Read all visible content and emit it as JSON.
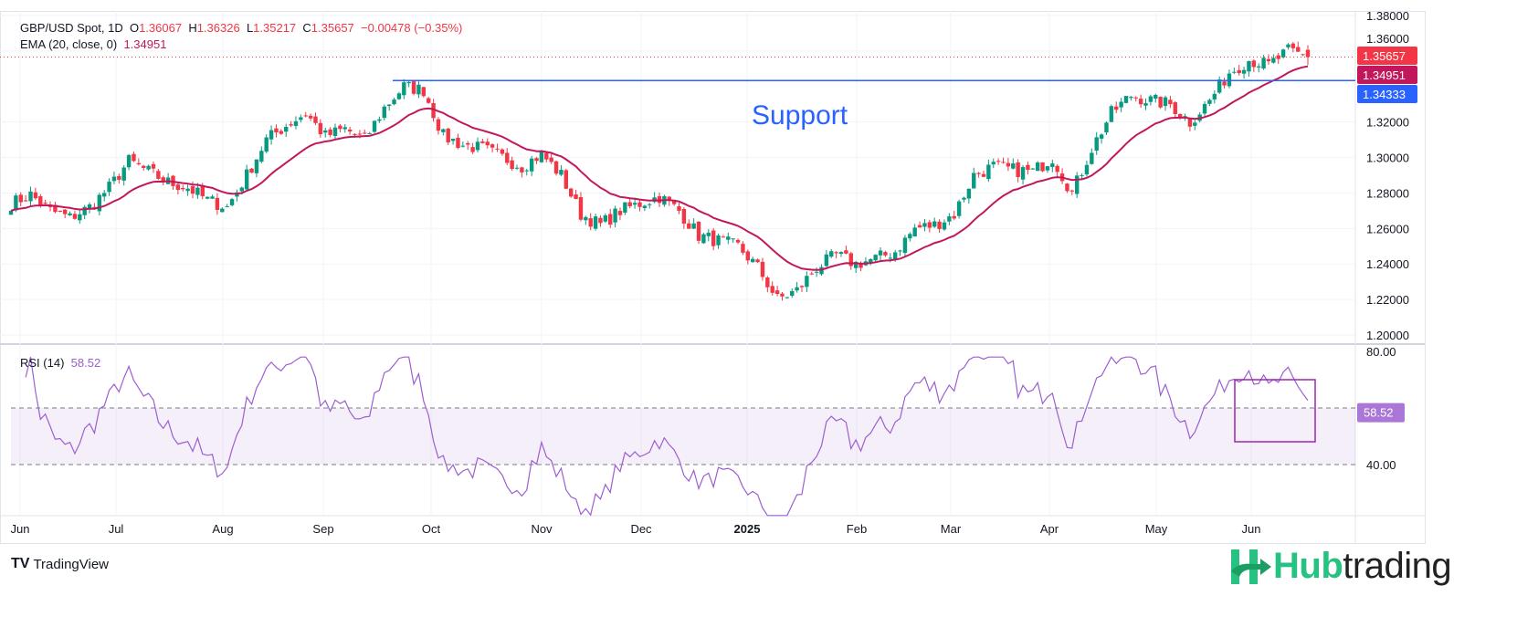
{
  "header": {
    "symbol": "GBP/USD Spot, 1D",
    "o_label": "O",
    "open": "1.36067",
    "h_label": "H",
    "high": "1.36326",
    "l_label": "L",
    "low": "1.35217",
    "c_label": "C",
    "close": "1.35657",
    "change": "−0.00478 (−0.35%)"
  },
  "ema_legend": {
    "label": "EMA (20, close, 0)",
    "value": "1.34951"
  },
  "rsi_legend": {
    "label": "RSI (14)",
    "value": "58.52"
  },
  "annotation": "Support",
  "price_badges": {
    "last": "1.35657",
    "ema": "1.34951",
    "support": "1.34333"
  },
  "colors": {
    "up": "#089981",
    "down": "#f23645",
    "ema": "#c2185b",
    "support": "#2962ff",
    "rsi": "#9c5fd0"
  },
  "branding": {
    "tradingview": "TradingView",
    "hub1": "Hub",
    "hub2": "trading"
  },
  "chart_data": {
    "type": "candlestick",
    "title": "GBP/USD Spot, 1D",
    "price_axis": {
      "ticks": [
        "1.38000",
        "1.36000",
        "1.32000",
        "1.30000",
        "1.28000",
        "1.26000",
        "1.24000",
        "1.22000",
        "1.20000"
      ],
      "range": [
        1.2,
        1.38
      ]
    },
    "rsi_axis": {
      "ticks": [
        "80.00",
        "40.00"
      ],
      "range": [
        20,
        85
      ],
      "bands": [
        40,
        60
      ]
    },
    "time_axis": [
      "Jun",
      "Jul",
      "Aug",
      "Sep",
      "Oct",
      "Nov",
      "Dec",
      "2025",
      "Feb",
      "Mar",
      "Apr",
      "May",
      "Jun"
    ],
    "support_level": 1.34333,
    "weekly_closes": [
      1.274,
      1.279,
      1.27,
      1.266,
      1.272,
      1.283,
      1.298,
      1.292,
      1.286,
      1.283,
      1.276,
      1.272,
      1.29,
      1.31,
      1.318,
      1.325,
      1.312,
      1.316,
      1.31,
      1.328,
      1.34,
      1.338,
      1.312,
      1.307,
      1.305,
      1.3,
      1.295,
      1.302,
      1.29,
      1.268,
      1.262,
      1.27,
      1.274,
      1.278,
      1.27,
      1.256,
      1.253,
      1.25,
      1.238,
      1.22,
      1.225,
      1.238,
      1.245,
      1.24,
      1.243,
      1.247,
      1.26,
      1.262,
      1.268,
      1.29,
      1.295,
      1.293,
      1.292,
      1.3,
      1.28,
      1.305,
      1.325,
      1.335,
      1.332,
      1.33,
      1.32,
      1.332,
      1.348,
      1.355,
      1.352,
      1.36,
      1.3566
    ]
  }
}
